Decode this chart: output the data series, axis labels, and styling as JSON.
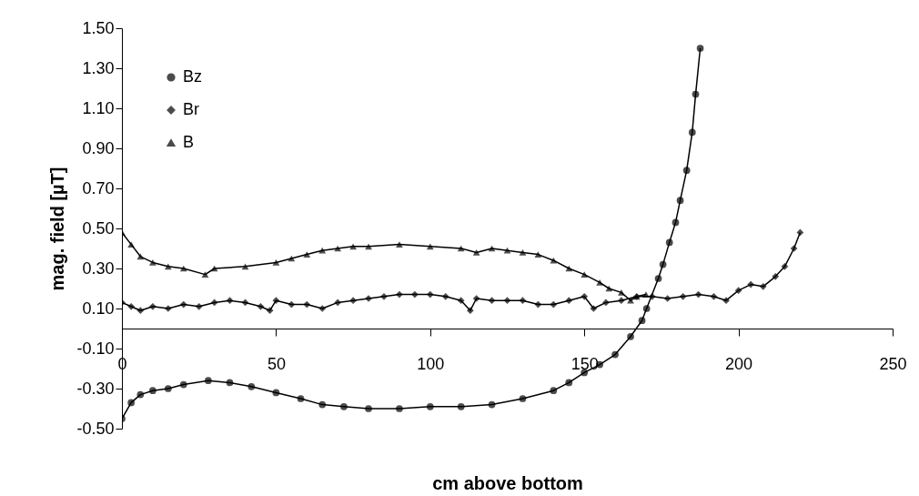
{
  "chart_data": {
    "type": "line",
    "xlabel": "cm above bottom",
    "ylabel": "mag. field [µT]",
    "xlim": [
      0,
      250
    ],
    "xticks": [
      0,
      50,
      100,
      150,
      200,
      250
    ],
    "ylim": [
      -0.5,
      1.5
    ],
    "yticks": [
      {
        "value": -0.5,
        "label": "-0.50"
      },
      {
        "value": -0.3,
        "label": "-0.30"
      },
      {
        "value": -0.1,
        "label": "-0.10"
      },
      {
        "value": 0.1,
        "label": "0.10"
      },
      {
        "value": 0.3,
        "label": "0.30"
      },
      {
        "value": 0.5,
        "label": "0.50"
      },
      {
        "value": 0.7,
        "label": "0.70"
      },
      {
        "value": 0.9,
        "label": "0.90"
      },
      {
        "value": 1.1,
        "label": "1.10"
      },
      {
        "value": 1.3,
        "label": "1.30"
      },
      {
        "value": 1.5,
        "label": "1.50"
      }
    ],
    "grid": false,
    "legend": "top left",
    "line_style": "solid",
    "series": [
      {
        "name": "Bz",
        "color": "#000000",
        "marker": "circle",
        "x": [
          0,
          3,
          6,
          10,
          15,
          20,
          28,
          35,
          42,
          50,
          58,
          65,
          72,
          80,
          90,
          100,
          110,
          120,
          130,
          140,
          145,
          150,
          155,
          160,
          165,
          168.7,
          170.2,
          174,
          175.5,
          177.6,
          179.6,
          181.1,
          183.2,
          185,
          186.1,
          187.6
        ],
        "values": [
          -0.45,
          -0.37,
          -0.33,
          -0.31,
          -0.3,
          -0.28,
          -0.26,
          -0.27,
          -0.29,
          -0.32,
          -0.35,
          -0.38,
          -0.39,
          -0.4,
          -0.4,
          -0.39,
          -0.39,
          -0.38,
          -0.35,
          -0.31,
          -0.27,
          -0.22,
          -0.18,
          -0.13,
          -0.04,
          0.04,
          0.1,
          0.25,
          0.32,
          0.43,
          0.53,
          0.64,
          0.79,
          0.98,
          1.17,
          1.4
        ]
      },
      {
        "name": "Br",
        "color": "#000000",
        "marker": "diamond",
        "x": [
          0,
          3,
          6,
          10,
          15,
          20,
          25,
          30,
          35,
          40,
          45,
          48,
          50,
          55,
          60,
          65,
          70,
          75,
          80,
          85,
          90,
          95,
          100,
          105,
          110,
          113,
          115,
          120,
          125,
          130,
          135,
          140,
          145,
          150,
          153,
          157,
          162,
          167,
          172,
          177,
          182,
          187,
          192,
          196,
          200,
          204,
          208,
          212,
          215,
          218,
          220
        ],
        "values": [
          0.13,
          0.11,
          0.09,
          0.11,
          0.1,
          0.12,
          0.11,
          0.13,
          0.14,
          0.13,
          0.11,
          0.09,
          0.14,
          0.12,
          0.12,
          0.1,
          0.13,
          0.14,
          0.15,
          0.16,
          0.17,
          0.17,
          0.17,
          0.16,
          0.14,
          0.09,
          0.15,
          0.14,
          0.14,
          0.14,
          0.12,
          0.12,
          0.14,
          0.16,
          0.1,
          0.13,
          0.14,
          0.16,
          0.16,
          0.15,
          0.16,
          0.17,
          0.16,
          0.14,
          0.19,
          0.22,
          0.21,
          0.26,
          0.31,
          0.4,
          0.48
        ]
      },
      {
        "name": "B",
        "color": "#000000",
        "marker": "triangle",
        "x": [
          0,
          3,
          6,
          10,
          15,
          20,
          27,
          30,
          40,
          50,
          55,
          60,
          65,
          70,
          75,
          80,
          90,
          100,
          110,
          115,
          120,
          125,
          130,
          135,
          140,
          145,
          150,
          155,
          158,
          162,
          165,
          167,
          170
        ],
        "values": [
          0.48,
          0.42,
          0.36,
          0.33,
          0.31,
          0.3,
          0.27,
          0.3,
          0.31,
          0.33,
          0.35,
          0.37,
          0.39,
          0.4,
          0.41,
          0.41,
          0.42,
          0.41,
          0.4,
          0.38,
          0.4,
          0.39,
          0.38,
          0.37,
          0.34,
          0.3,
          0.27,
          0.23,
          0.2,
          0.18,
          0.14,
          0.16,
          0.17
        ]
      }
    ]
  }
}
